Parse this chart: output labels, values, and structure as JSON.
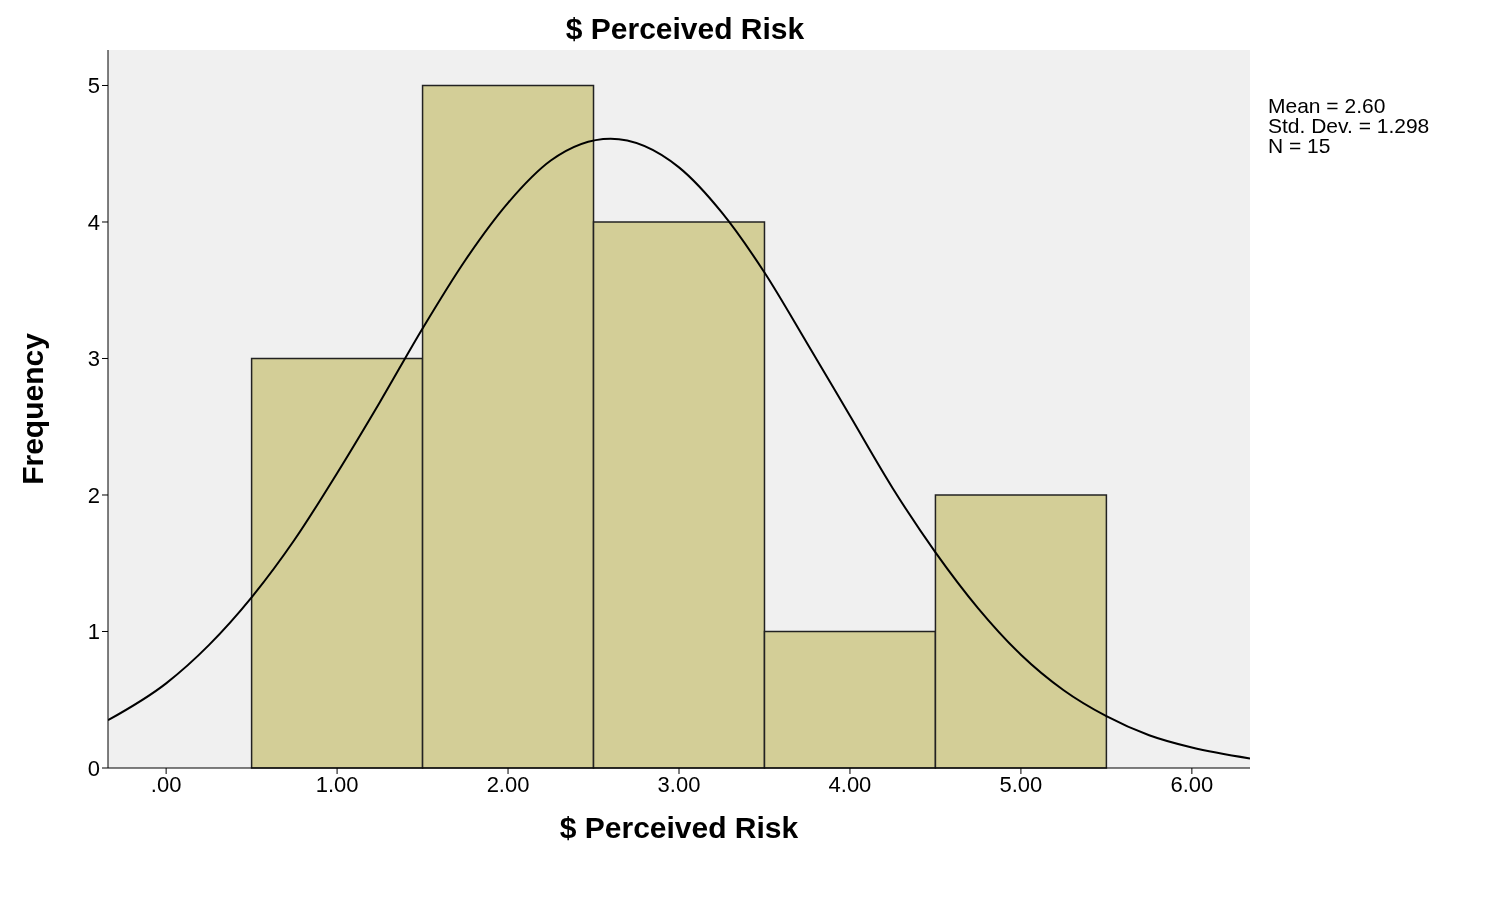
{
  "chart_data": {
    "type": "histogram",
    "title": "$ Perceived Risk",
    "xlabel": "$ Perceived Risk",
    "ylabel": "Frequency",
    "bins": [
      0.5,
      1.5,
      2.5,
      3.5,
      4.5,
      5.5
    ],
    "values": [
      3,
      5,
      4,
      1,
      2
    ],
    "color": "#d3ce97",
    "series": [
      {
        "type": "line",
        "color": "#000000",
        "x": [
          -0.34,
          0,
          0.25,
          0.5,
          0.75,
          1,
          1.25,
          1.5,
          1.75,
          2,
          2.25,
          2.6,
          3,
          3.25,
          3.5,
          3.75,
          4,
          4.25,
          4.5,
          4.75,
          5,
          5.25,
          5.5,
          5.75,
          6,
          6.34
        ],
        "values": [
          0.35,
          0.62,
          0.9,
          1.25,
          1.67,
          2.16,
          2.68,
          3.22,
          3.72,
          4.14,
          4.45,
          4.61,
          4.4,
          4.07,
          3.63,
          3.11,
          2.58,
          2.05,
          1.58,
          1.17,
          0.83,
          0.57,
          0.38,
          0.24,
          0.15,
          0.07
        ]
      }
    ],
    "xlim": [
      -0.34,
      6.34
    ],
    "xticks": [
      {
        "value": 0,
        "label": ".00"
      },
      {
        "value": 1,
        "label": "1.00"
      },
      {
        "value": 2,
        "label": "2.00"
      },
      {
        "value": 3,
        "label": "3.00"
      },
      {
        "value": 4,
        "label": "4.00"
      },
      {
        "value": 5,
        "label": "5.00"
      },
      {
        "value": 6,
        "label": "6.00"
      }
    ],
    "ylim": [
      0,
      5.26
    ],
    "yticks": [
      0,
      1,
      2,
      3,
      4,
      5
    ],
    "grid": false,
    "annotations": [
      "Mean = 2.60",
      "Std. Dev. = 1.298",
      "N = 15"
    ]
  }
}
